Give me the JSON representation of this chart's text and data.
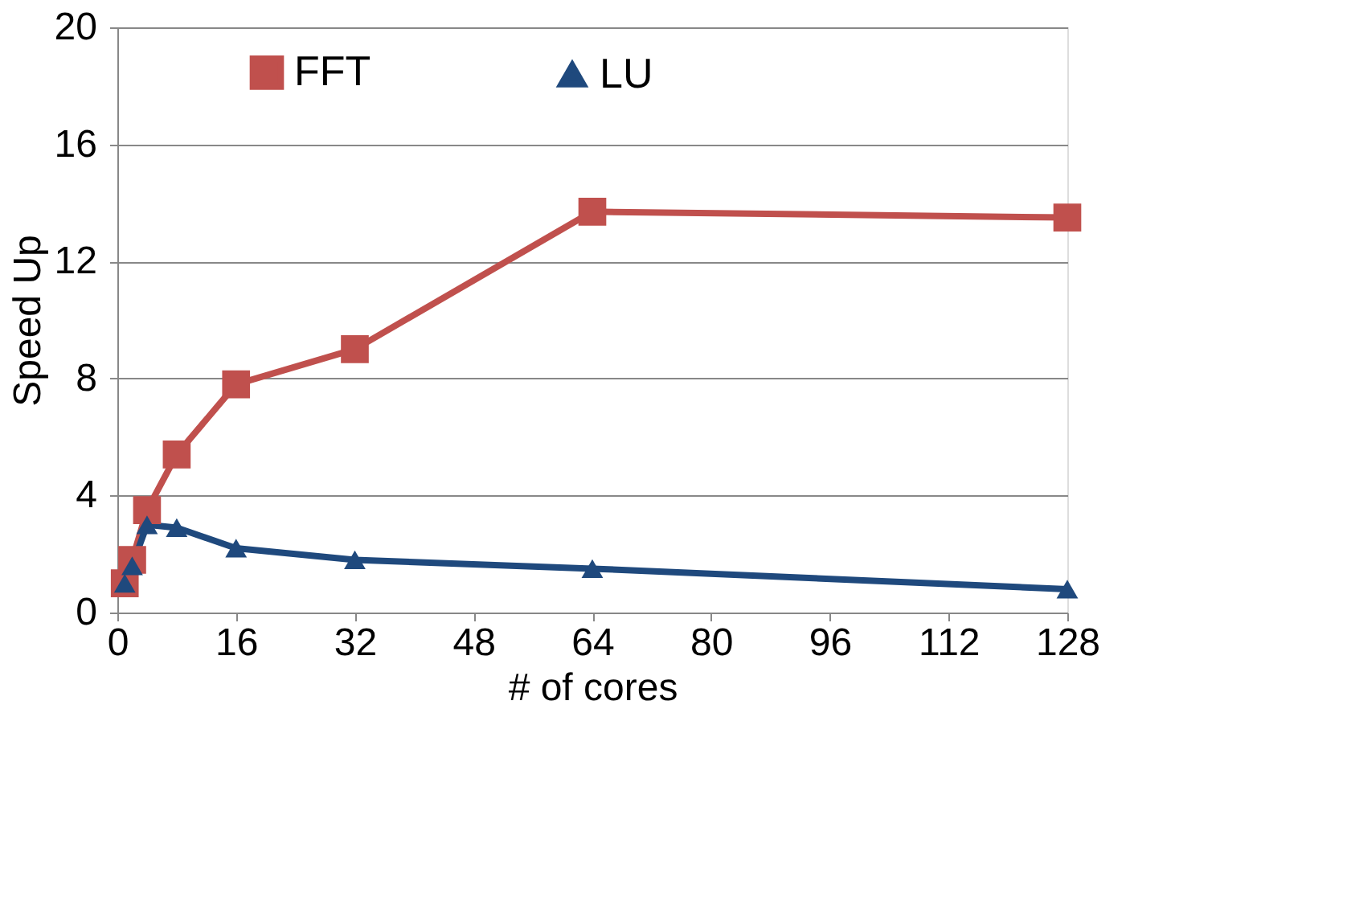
{
  "chart_data": {
    "type": "line",
    "xlabel": "# of cores",
    "ylabel": "Speed Up",
    "x": [
      1,
      2,
      4,
      8,
      16,
      32,
      64,
      128
    ],
    "series": [
      {
        "name": "FFT",
        "color": "#c0504d",
        "marker": "square",
        "values": [
          1.0,
          1.8,
          3.5,
          5.4,
          7.8,
          9.0,
          13.7,
          13.5
        ]
      },
      {
        "name": "LU",
        "color": "#1f497d",
        "marker": "triangle",
        "values": [
          1.0,
          1.6,
          3.0,
          2.9,
          2.2,
          1.8,
          1.5,
          0.8
        ]
      }
    ],
    "xlim": [
      0,
      128
    ],
    "xticks": [
      0,
      16,
      32,
      48,
      64,
      80,
      96,
      112,
      128
    ],
    "ylim": [
      0,
      20
    ],
    "yticks": [
      0,
      4,
      8,
      12,
      16,
      20
    ],
    "grid": "y",
    "legend": "top left",
    "line_style": "solid"
  }
}
